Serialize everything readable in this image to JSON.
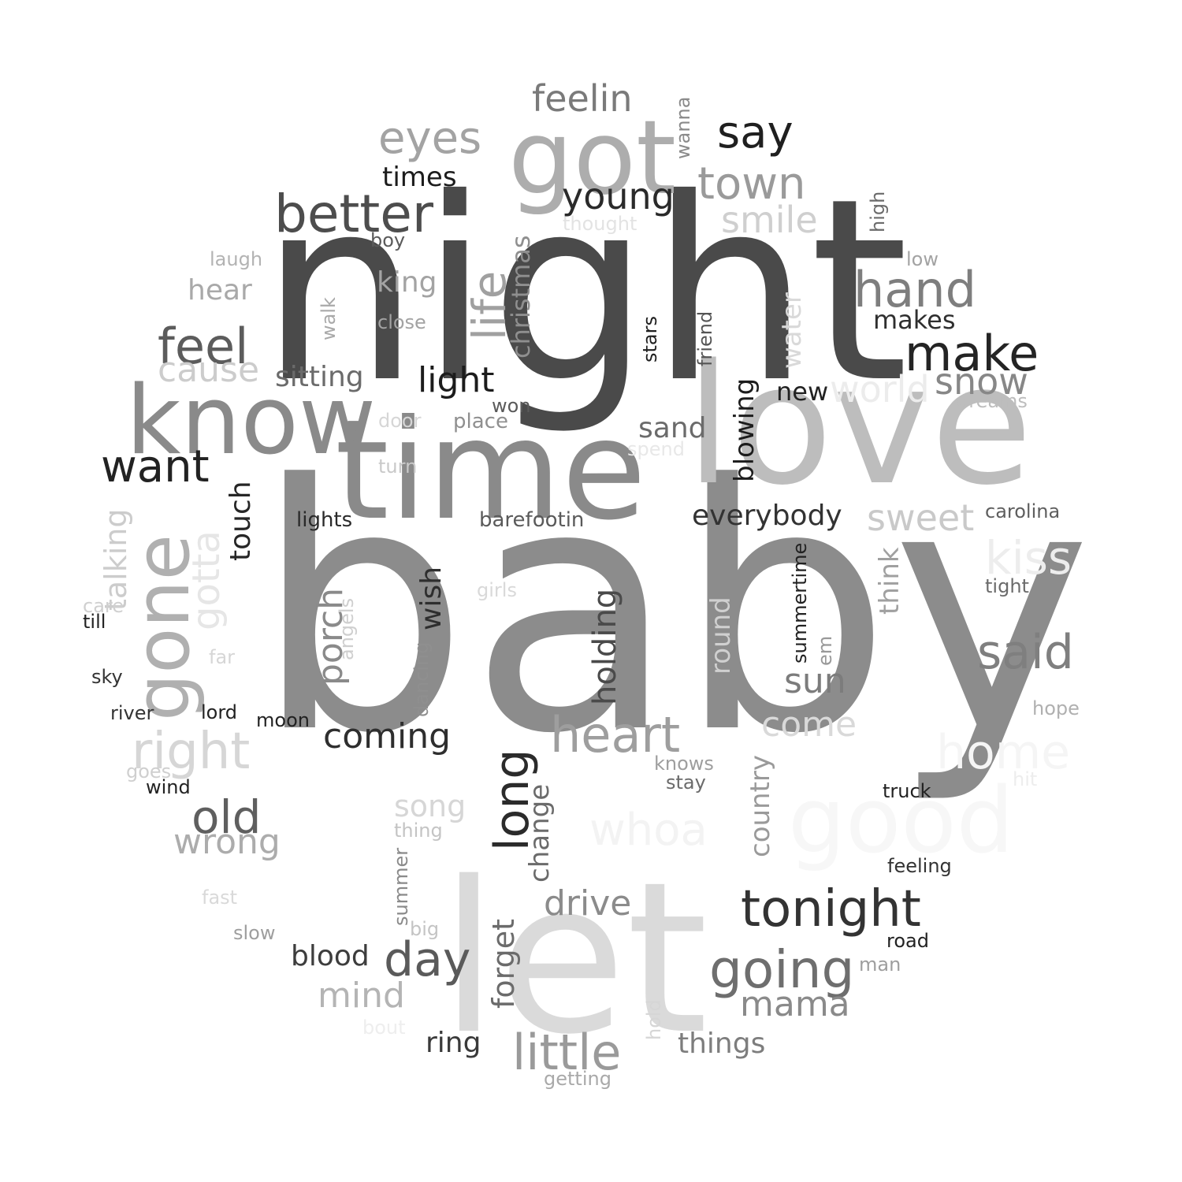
{
  "words": [
    {
      "text": "baby",
      "color": "#8c8c8c",
      "vertical": false
    },
    {
      "text": "night",
      "color": "#4a4a4a",
      "vertical": false
    },
    {
      "text": "love",
      "color": "#bdbdbd",
      "vertical": false
    },
    {
      "text": "let",
      "color": "#dadada",
      "vertical": false
    },
    {
      "text": "time",
      "color": "#8a8a8a",
      "vertical": false
    },
    {
      "text": "know",
      "color": "#8a8a8a",
      "vertical": false
    },
    {
      "text": "got",
      "color": "#adadad",
      "vertical": false
    },
    {
      "text": "good",
      "color": "#f7f7f7",
      "vertical": false
    },
    {
      "text": "gone",
      "color": "#b0b0b0",
      "vertical": true
    },
    {
      "text": "tonight",
      "color": "#333333",
      "vertical": false
    },
    {
      "text": "better",
      "color": "#4d4d4d",
      "vertical": false
    },
    {
      "text": "heart",
      "color": "#9e9e9e",
      "vertical": false
    },
    {
      "text": "little",
      "color": "#9a9a9a",
      "vertical": false
    },
    {
      "text": "going",
      "color": "#6e6e6e",
      "vertical": false
    },
    {
      "text": "home",
      "color": "#f5f5f5",
      "vertical": false
    },
    {
      "text": "hand",
      "color": "#7e7e7e",
      "vertical": false
    },
    {
      "text": "said",
      "color": "#7f7f7f",
      "vertical": false
    },
    {
      "text": "right",
      "color": "#d6d6d6",
      "vertical": false
    },
    {
      "text": "whoa",
      "color": "#f3f3f3",
      "vertical": false
    },
    {
      "text": "make",
      "color": "#242424",
      "vertical": false
    },
    {
      "text": "say",
      "color": "#1f1f1f",
      "vertical": false
    },
    {
      "text": "want",
      "color": "#222222",
      "vertical": false
    },
    {
      "text": "feel",
      "color": "#5c5c5c",
      "vertical": false
    },
    {
      "text": "eyes",
      "color": "#a3a3a3",
      "vertical": false
    },
    {
      "text": "town",
      "color": "#9a9a9a",
      "vertical": false
    },
    {
      "text": "old",
      "color": "#5f5f5f",
      "vertical": false
    },
    {
      "text": "day",
      "color": "#5a5a5a",
      "vertical": false
    },
    {
      "text": "kiss",
      "color": "#ededed",
      "vertical": false
    },
    {
      "text": "long",
      "color": "#2b2b2b",
      "vertical": true
    },
    {
      "text": "life",
      "color": "#a0a0a0",
      "vertical": true
    },
    {
      "text": "gotta",
      "color": "#e6e6e6",
      "vertical": true
    },
    {
      "text": "feelin",
      "color": "#7a7a7a",
      "vertical": false
    },
    {
      "text": "young",
      "color": "#2a2a2a",
      "vertical": false
    },
    {
      "text": "world",
      "color": "#ececec",
      "vertical": false
    },
    {
      "text": "smile",
      "color": "#cfcfcf",
      "vertical": false
    },
    {
      "text": "sweet",
      "color": "#c9c9c9",
      "vertical": false
    },
    {
      "text": "snow",
      "color": "#878787",
      "vertical": false
    },
    {
      "text": "light",
      "color": "#1c1c1c",
      "vertical": false
    },
    {
      "text": "cause",
      "color": "#cccccc",
      "vertical": false
    },
    {
      "text": "drive",
      "color": "#8b8b8b",
      "vertical": false
    },
    {
      "text": "mind",
      "color": "#b4b4b4",
      "vertical": false
    },
    {
      "text": "mama",
      "color": "#8a8a8a",
      "vertical": false
    },
    {
      "text": "wrong",
      "color": "#acacac",
      "vertical": false
    },
    {
      "text": "coming",
      "color": "#2e2e2e",
      "vertical": false
    },
    {
      "text": "sun",
      "color": "#7c7c7c",
      "vertical": false
    },
    {
      "text": "come",
      "color": "#d9d9d9",
      "vertical": false
    },
    {
      "text": "song",
      "color": "#d6d6d6",
      "vertical": false
    },
    {
      "text": "holding",
      "color": "#4a4a4a",
      "vertical": true
    },
    {
      "text": "porch",
      "color": "#8a8a8a",
      "vertical": true
    },
    {
      "text": "talking",
      "color": "#cccccc",
      "vertical": true
    },
    {
      "text": "everybody",
      "color": "#333333",
      "vertical": false
    },
    {
      "text": "hear",
      "color": "#a9a9a9",
      "vertical": false
    },
    {
      "text": "king",
      "color": "#a3a3a3",
      "vertical": false
    },
    {
      "text": "sitting",
      "color": "#6b6b6b",
      "vertical": false
    },
    {
      "text": "times",
      "color": "#1c1c1c",
      "vertical": false
    },
    {
      "text": "christmas",
      "color": "#8f8f8f",
      "vertical": true
    },
    {
      "text": "blowing",
      "color": "#1c1c1c",
      "vertical": true
    },
    {
      "text": "sand",
      "color": "#6b6b6b",
      "vertical": false
    },
    {
      "text": "blood",
      "color": "#3d3d3d",
      "vertical": false
    },
    {
      "text": "ring",
      "color": "#3a3a3a",
      "vertical": false
    },
    {
      "text": "things",
      "color": "#7d7d7d",
      "vertical": false
    },
    {
      "text": "forget",
      "color": "#6b6b6b",
      "vertical": true
    },
    {
      "text": "wish",
      "color": "#2e2e2e",
      "vertical": true
    },
    {
      "text": "touch",
      "color": "#262626",
      "vertical": true
    },
    {
      "text": "change",
      "color": "#6b6b6b",
      "vertical": true
    },
    {
      "text": "round",
      "color": "#d0d0d0",
      "vertical": true
    },
    {
      "text": "country",
      "color": "#9a9a9a",
      "vertical": true
    },
    {
      "text": "think",
      "color": "#a0a0a0",
      "vertical": true
    },
    {
      "text": "makes",
      "color": "#2f2f2f",
      "vertical": false
    },
    {
      "text": "water",
      "color": "#d9d9d9",
      "vertical": true
    },
    {
      "text": "new",
      "color": "#222222",
      "vertical": false
    },
    {
      "text": "place",
      "color": "#8f8f8f",
      "vertical": false
    },
    {
      "text": "barefootin",
      "color": "#5a5a5a",
      "vertical": false
    },
    {
      "text": "lights",
      "color": "#2a2a2a",
      "vertical": false
    },
    {
      "text": "carolina",
      "color": "#5e5e5e",
      "vertical": false
    },
    {
      "text": "tight",
      "color": "#6b6b6b",
      "vertical": false
    },
    {
      "text": "summertime",
      "color": "#222222",
      "vertical": true
    },
    {
      "text": "laugh",
      "color": "#b3b3b3",
      "vertical": false
    },
    {
      "text": "boy",
      "color": "#5a5a5a",
      "vertical": false
    },
    {
      "text": "close",
      "color": "#a3a3a3",
      "vertical": false
    },
    {
      "text": "walk",
      "color": "#a9a9a9",
      "vertical": true
    },
    {
      "text": "stars",
      "color": "#1f1f1f",
      "vertical": true
    },
    {
      "text": "friend",
      "color": "#555555",
      "vertical": true
    },
    {
      "text": "low",
      "color": "#a3a3a3",
      "vertical": false
    },
    {
      "text": "high",
      "color": "#6b6b6b",
      "vertical": true
    },
    {
      "text": "thought",
      "color": "#e3e3e3",
      "vertical": false
    },
    {
      "text": "wanna",
      "color": "#8a8a8a",
      "vertical": true
    },
    {
      "text": "won",
      "color": "#5a5a5a",
      "vertical": false
    },
    {
      "text": "door",
      "color": "#d6d6d6",
      "vertical": false
    },
    {
      "text": "turn",
      "color": "#c9c9c9",
      "vertical": false
    },
    {
      "text": "spend",
      "color": "#e8e8e8",
      "vertical": false
    },
    {
      "text": "dreams",
      "color": "#bdbdbd",
      "vertical": false
    },
    {
      "text": "girls",
      "color": "#d9d9d9",
      "vertical": false
    },
    {
      "text": "angels",
      "color": "#cfcfcf",
      "vertical": true
    },
    {
      "text": "dancing",
      "color": "#8f8f8f",
      "vertical": true
    },
    {
      "text": "em",
      "color": "#999999",
      "vertical": true
    },
    {
      "text": "care",
      "color": "#d0d0d0",
      "vertical": false
    },
    {
      "text": "till",
      "color": "#222222",
      "vertical": false
    },
    {
      "text": "far",
      "color": "#d6d6d6",
      "vertical": false
    },
    {
      "text": "sky",
      "color": "#333333",
      "vertical": false
    },
    {
      "text": "river",
      "color": "#333333",
      "vertical": false
    },
    {
      "text": "lord",
      "color": "#222222",
      "vertical": false
    },
    {
      "text": "moon",
      "color": "#222222",
      "vertical": false
    },
    {
      "text": "goes",
      "color": "#cfcfcf",
      "vertical": false
    },
    {
      "text": "wind",
      "color": "#222222",
      "vertical": false
    },
    {
      "text": "knows",
      "color": "#9e9e9e",
      "vertical": false
    },
    {
      "text": "stay",
      "color": "#6b6b6b",
      "vertical": false
    },
    {
      "text": "truck",
      "color": "#222222",
      "vertical": false
    },
    {
      "text": "hope",
      "color": "#b0b0b0",
      "vertical": false
    },
    {
      "text": "hit",
      "color": "#ededed",
      "vertical": false
    },
    {
      "text": "thing",
      "color": "#c4c4c4",
      "vertical": false
    },
    {
      "text": "feeling",
      "color": "#333333",
      "vertical": false
    },
    {
      "text": "summer",
      "color": "#8a8a8a",
      "vertical": true
    },
    {
      "text": "fast",
      "color": "#d9d9d9",
      "vertical": false
    },
    {
      "text": "slow",
      "color": "#9e9e9e",
      "vertical": false
    },
    {
      "text": "big",
      "color": "#c4c4c4",
      "vertical": false
    },
    {
      "text": "road",
      "color": "#222222",
      "vertical": false
    },
    {
      "text": "man",
      "color": "#9e9e9e",
      "vertical": false
    },
    {
      "text": "hold",
      "color": "#d6d6d6",
      "vertical": true
    },
    {
      "text": "bout",
      "color": "#eeeeee",
      "vertical": false
    },
    {
      "text": "getting",
      "color": "#a9a9a9",
      "vertical": false
    }
  ]
}
